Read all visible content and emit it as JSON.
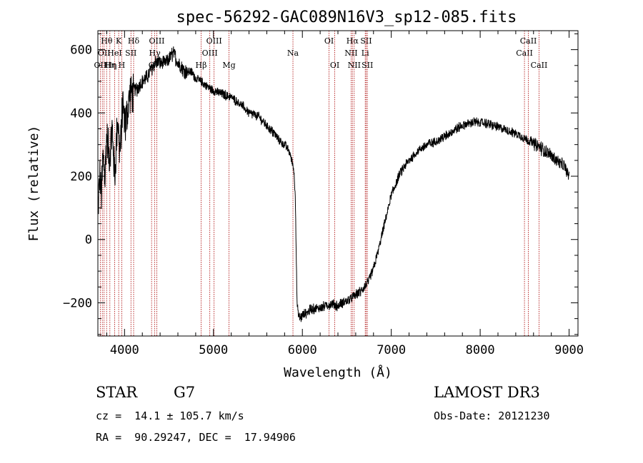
{
  "chart_data": {
    "type": "line",
    "title": "spec-56292-GAC089N16V3_sp12-085.fits",
    "xlabel": "Wavelength (Å)",
    "ylabel": "Flux (relative)",
    "xlim": [
      3700,
      9100
    ],
    "ylim": [
      -305,
      660
    ],
    "xticks": [
      4000,
      5000,
      6000,
      7000,
      8000,
      9000
    ],
    "yticks": [
      -200,
      0,
      200,
      400,
      600
    ],
    "xtick_labels": [
      "4000",
      "5000",
      "6000",
      "7000",
      "8000",
      "9000"
    ],
    "ytick_labels": [
      "−200",
      "0",
      "200",
      "400",
      "600"
    ],
    "series": [
      {
        "name": "spectrum",
        "noise_amplitude": 22,
        "x": [
          3700,
          3720,
          3740,
          3760,
          3780,
          3800,
          3830,
          3860,
          3890,
          3920,
          3950,
          3980,
          4010,
          4050,
          4100,
          4150,
          4200,
          4250,
          4300,
          4350,
          4400,
          4450,
          4500,
          4550,
          4600,
          4650,
          4700,
          4750,
          4800,
          4850,
          4900,
          4950,
          5000,
          5100,
          5200,
          5300,
          5400,
          5500,
          5600,
          5700,
          5750,
          5800,
          5850,
          5880,
          5900,
          5920,
          5940,
          5950,
          5970,
          6000,
          6050,
          6100,
          6150,
          6200,
          6250,
          6300,
          6350,
          6400,
          6450,
          6500,
          6550,
          6600,
          6650,
          6700,
          6750,
          6800,
          6850,
          6900,
          6950,
          7000,
          7100,
          7200,
          7300,
          7400,
          7500,
          7600,
          7700,
          7800,
          7900,
          8000,
          8100,
          8200,
          8300,
          8400,
          8500,
          8600,
          8700,
          8800,
          8900,
          8950,
          9000
        ],
        "y": [
          60,
          200,
          150,
          260,
          210,
          330,
          250,
          350,
          200,
          380,
          280,
          420,
          360,
          450,
          470,
          480,
          500,
          510,
          540,
          560,
          560,
          555,
          570,
          590,
          560,
          540,
          530,
          530,
          510,
          500,
          490,
          480,
          470,
          460,
          450,
          430,
          400,
          390,
          360,
          330,
          310,
          300,
          280,
          250,
          230,
          150,
          -200,
          -230,
          -250,
          -240,
          -230,
          -220,
          -220,
          -215,
          -210,
          -205,
          -205,
          -210,
          -200,
          -195,
          -185,
          -175,
          -165,
          -150,
          -130,
          -90,
          -40,
          20,
          80,
          140,
          210,
          250,
          280,
          300,
          310,
          325,
          345,
          360,
          370,
          370,
          365,
          355,
          345,
          335,
          320,
          305,
          285,
          265,
          240,
          230,
          200
        ]
      }
    ],
    "line_markers": [
      {
        "wl": 3727,
        "label": "OII",
        "row": 2,
        "align": "center"
      },
      {
        "wl": 3750,
        "label": "Hθ",
        "row": 0,
        "align": "left"
      },
      {
        "wl": 3770,
        "label": "OII",
        "row": 1,
        "align": "center"
      },
      {
        "wl": 3798,
        "label": "Hη",
        "row": 2,
        "align": "left"
      },
      {
        "wl": 3835,
        "label": "Hη",
        "row": 2,
        "align": "center"
      },
      {
        "wl": 3889,
        "label": "HeI",
        "row": 1,
        "align": "center"
      },
      {
        "wl": 3934,
        "label": "K",
        "row": 0,
        "align": "center"
      },
      {
        "wl": 3969,
        "label": "H",
        "row": 2,
        "align": "center"
      },
      {
        "wl": 4072,
        "label": "SII",
        "row": 1,
        "align": "center"
      },
      {
        "wl": 4102,
        "label": "Hδ",
        "row": 0,
        "align": "center"
      },
      {
        "wl": 4304,
        "label": "G",
        "row": 2,
        "align": "center"
      },
      {
        "wl": 4340,
        "label": "Hγ",
        "row": 1,
        "align": "center"
      },
      {
        "wl": 4363,
        "label": "OIII",
        "row": 0,
        "align": "center"
      },
      {
        "wl": 4861,
        "label": "Hβ",
        "row": 2,
        "align": "center"
      },
      {
        "wl": 4959,
        "label": "OIII",
        "row": 1,
        "align": "center"
      },
      {
        "wl": 5007,
        "label": "OIII",
        "row": 0,
        "align": "center"
      },
      {
        "wl": 5175,
        "label": "Mg",
        "row": 2,
        "align": "center"
      },
      {
        "wl": 5894,
        "label": "Na",
        "row": 1,
        "align": "center"
      },
      {
        "wl": 6300,
        "label": "OI",
        "row": 0,
        "align": "center"
      },
      {
        "wl": 6364,
        "label": "OI",
        "row": 2,
        "align": "center"
      },
      {
        "wl": 6548,
        "label": "NII",
        "row": 1,
        "align": "center"
      },
      {
        "wl": 6563,
        "label": "Hα",
        "row": 0,
        "align": "center"
      },
      {
        "wl": 6583,
        "label": "NII",
        "row": 2,
        "align": "center"
      },
      {
        "wl": 6707,
        "label": "Li",
        "row": 1,
        "align": "center"
      },
      {
        "wl": 6717,
        "label": "SII",
        "row": 0,
        "align": "center"
      },
      {
        "wl": 6731,
        "label": "SII",
        "row": 2,
        "align": "center"
      },
      {
        "wl": 8498,
        "label": "CaII",
        "row": 1,
        "align": "center"
      },
      {
        "wl": 8542,
        "label": "CaII",
        "row": 0,
        "align": "center"
      },
      {
        "wl": 8662,
        "label": "CaII",
        "row": 2,
        "align": "center"
      }
    ],
    "colors": {
      "spectrum": "#000000",
      "markers": "#aa0000",
      "axes": "#000000"
    }
  },
  "info": {
    "object_type": "STAR",
    "subclass": "G7",
    "survey": "LAMOST DR3",
    "redshift": "cz =  14.1 ± 105.7 km/s",
    "obs_date": "Obs-Date: 20121230",
    "coords": "RA =  90.29247, DEC =  17.94906"
  }
}
